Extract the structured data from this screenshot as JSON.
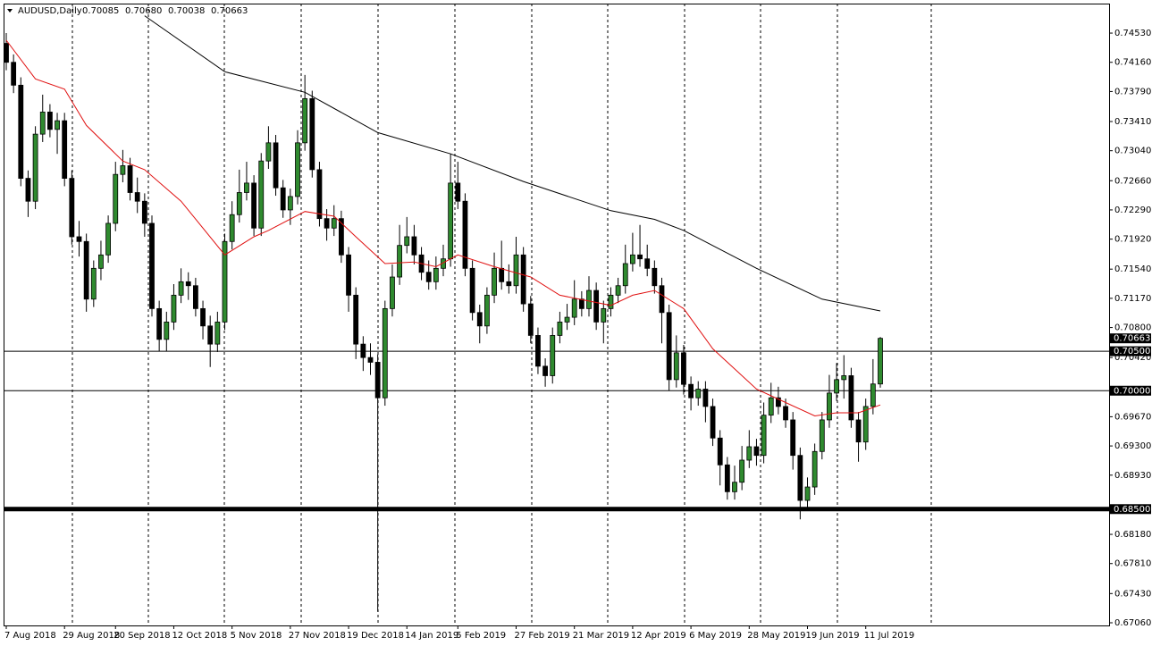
{
  "chart_data": {
    "type": "candlestick",
    "title": "AUDUSD,Daily",
    "last_bar_labels": [
      "0.70085",
      "0.70680",
      "0.70038",
      "0.70663"
    ],
    "up_color": "#2f8a2f",
    "down_color": "#000000",
    "categories": [
      "7 Aug 2018",
      null,
      null,
      null,
      null,
      null,
      null,
      null,
      "29 Aug 2018",
      null,
      null,
      null,
      null,
      null,
      null,
      "20 Sep 2018",
      null,
      null,
      null,
      null,
      null,
      null,
      null,
      "12 Oct 2018",
      null,
      null,
      null,
      null,
      null,
      null,
      null,
      "5 Nov 2018",
      null,
      null,
      null,
      null,
      null,
      null,
      null,
      "27 Nov 2018",
      null,
      null,
      null,
      null,
      null,
      null,
      null,
      "19 Dec 2018",
      null,
      null,
      null,
      null,
      null,
      null,
      null,
      "14 Jan 2019",
      null,
      null,
      null,
      null,
      null,
      null,
      "5 Feb 2019",
      null,
      null,
      null,
      null,
      null,
      null,
      null,
      "27 Feb 2019",
      null,
      null,
      null,
      null,
      null,
      null,
      null,
      "21 Mar 2019",
      null,
      null,
      null,
      null,
      null,
      null,
      null,
      "12 Apr 2019",
      null,
      null,
      null,
      null,
      null,
      null,
      null,
      "6 May 2019",
      null,
      null,
      null,
      null,
      null,
      null,
      null,
      "28 May 2019",
      null,
      null,
      null,
      null,
      null,
      null,
      null,
      "19 Jun 2019",
      null,
      null,
      null,
      null,
      null,
      null,
      null,
      "11 Jul 2019",
      null,
      null
    ],
    "open": [
      0.744,
      0.7416,
      0.7387,
      0.7269,
      0.724,
      0.7325,
      0.7353,
      0.7331,
      0.7342,
      0.7269,
      0.7195,
      0.7189,
      0.7116,
      0.7155,
      0.7172,
      0.7212,
      0.7274,
      0.7285,
      0.7251,
      0.724,
      0.7212,
      0.7104,
      0.7065,
      0.7087,
      0.7121,
      0.7138,
      0.7133,
      0.7104,
      0.7082,
      0.7059,
      0.7087,
      0.7189,
      0.7223,
      0.7251,
      0.7263,
      0.7206,
      0.7291,
      0.7314,
      0.7257,
      0.7229,
      0.7246,
      0.7314,
      0.737,
      0.728,
      0.7218,
      0.7206,
      0.7218,
      0.7172,
      0.7121,
      0.7059,
      0.7042,
      0.7036,
      0.6991,
      0.7104,
      0.7144,
      0.7184,
      0.7195,
      0.7172,
      0.715,
      0.7138,
      0.7155,
      0.7167,
      0.7263,
      0.724,
      0.7155,
      0.7099,
      0.7082,
      0.7121,
      0.7155,
      0.7138,
      0.7133,
      0.7172,
      0.711,
      0.707,
      0.7031,
      0.7019,
      0.707,
      0.7087,
      0.7093,
      0.7116,
      0.7104,
      0.7127,
      0.7087,
      0.7104,
      0.7121,
      0.7133,
      0.7161,
      0.7172,
      0.7167,
      0.7155,
      0.7133,
      0.7099,
      0.7014,
      0.7048,
      0.7008,
      0.6991,
      0.7002,
      0.698,
      0.694,
      0.6906,
      0.6872,
      0.6884,
      0.6912,
      0.6929,
      0.6918,
      0.6969,
      0.6991,
      0.698,
      0.6963,
      0.6918,
      0.6861,
      0.6878,
      0.6923,
      0.6963,
      0.6997,
      0.7014,
      0.7019,
      0.6963,
      0.6935,
      0.698,
      0.70085
    ],
    "high": [
      0.7453,
      0.7426,
      0.7397,
      0.7279,
      0.7335,
      0.7375,
      0.7363,
      0.7352,
      0.7352,
      0.7279,
      0.7215,
      0.7199,
      0.7165,
      0.719,
      0.7222,
      0.729,
      0.7305,
      0.7295,
      0.727,
      0.725,
      0.7222,
      0.7114,
      0.71,
      0.7135,
      0.7155,
      0.715,
      0.7143,
      0.7114,
      0.7095,
      0.71,
      0.7199,
      0.724,
      0.728,
      0.729,
      0.7273,
      0.7301,
      0.7335,
      0.7324,
      0.7267,
      0.7256,
      0.733,
      0.74,
      0.738,
      0.729,
      0.723,
      0.7235,
      0.7228,
      0.7182,
      0.7131,
      0.7069,
      0.706,
      0.7046,
      0.7114,
      0.716,
      0.721,
      0.722,
      0.721,
      0.7182,
      0.7165,
      0.717,
      0.7185,
      0.73,
      0.729,
      0.725,
      0.7165,
      0.7109,
      0.7131,
      0.7175,
      0.719,
      0.716,
      0.7195,
      0.7182,
      0.712,
      0.708,
      0.7041,
      0.708,
      0.71,
      0.711,
      0.714,
      0.7126,
      0.7145,
      0.7137,
      0.7114,
      0.7131,
      0.7143,
      0.7185,
      0.72,
      0.721,
      0.7185,
      0.7165,
      0.7143,
      0.7109,
      0.707,
      0.7058,
      0.7018,
      0.7012,
      0.7012,
      0.699,
      0.695,
      0.6916,
      0.6905,
      0.693,
      0.695,
      0.6939,
      0.6985,
      0.701,
      0.7005,
      0.699,
      0.6973,
      0.6928,
      0.689,
      0.6933,
      0.6973,
      0.702,
      0.7035,
      0.7045,
      0.7029,
      0.6973,
      0.699,
      0.704,
      0.7068
    ],
    "low": [
      0.7406,
      0.7377,
      0.7259,
      0.722,
      0.723,
      0.7315,
      0.7321,
      0.73,
      0.7259,
      0.7185,
      0.717,
      0.71,
      0.7106,
      0.714,
      0.7162,
      0.7202,
      0.7264,
      0.7241,
      0.7225,
      0.7195,
      0.7094,
      0.705,
      0.705,
      0.7077,
      0.7111,
      0.7115,
      0.7094,
      0.7065,
      0.703,
      0.7049,
      0.7077,
      0.7179,
      0.7213,
      0.7241,
      0.7196,
      0.7196,
      0.7281,
      0.7247,
      0.7219,
      0.721,
      0.7236,
      0.7304,
      0.727,
      0.7208,
      0.719,
      0.7196,
      0.7162,
      0.71,
      0.704,
      0.7025,
      0.702,
      0.672,
      0.6981,
      0.7094,
      0.7134,
      0.7174,
      0.716,
      0.714,
      0.7128,
      0.7128,
      0.7145,
      0.7157,
      0.723,
      0.7145,
      0.7089,
      0.706,
      0.7072,
      0.7111,
      0.7128,
      0.7123,
      0.7123,
      0.71,
      0.706,
      0.7021,
      0.7005,
      0.7009,
      0.706,
      0.7077,
      0.7083,
      0.7094,
      0.7094,
      0.7077,
      0.706,
      0.7094,
      0.7111,
      0.7123,
      0.7151,
      0.7157,
      0.7145,
      0.7123,
      0.706,
      0.7,
      0.7004,
      0.6995,
      0.6975,
      0.6981,
      0.696,
      0.693,
      0.688,
      0.6862,
      0.6862,
      0.6874,
      0.6902,
      0.6905,
      0.6908,
      0.6959,
      0.697,
      0.6953,
      0.69,
      0.6837,
      0.6851,
      0.6868,
      0.6913,
      0.6953,
      0.6987,
      0.699,
      0.6953,
      0.691,
      0.6925,
      0.697,
      0.70038
    ],
    "close": [
      0.7416,
      0.7387,
      0.7269,
      0.724,
      0.7325,
      0.7353,
      0.7331,
      0.7342,
      0.7269,
      0.7195,
      0.7189,
      0.7116,
      0.7155,
      0.7172,
      0.7212,
      0.7274,
      0.7285,
      0.7251,
      0.724,
      0.7212,
      0.7104,
      0.7065,
      0.7087,
      0.7121,
      0.7138,
      0.7133,
      0.7104,
      0.7082,
      0.7059,
      0.7087,
      0.7189,
      0.7223,
      0.7251,
      0.7263,
      0.7206,
      0.7291,
      0.7314,
      0.7257,
      0.7229,
      0.7246,
      0.7314,
      0.737,
      0.728,
      0.7218,
      0.7206,
      0.7218,
      0.7172,
      0.7121,
      0.7059,
      0.7042,
      0.7036,
      0.6991,
      0.7104,
      0.7144,
      0.7184,
      0.7195,
      0.7172,
      0.715,
      0.7138,
      0.7155,
      0.7167,
      0.7263,
      0.724,
      0.7155,
      0.7099,
      0.7082,
      0.7121,
      0.7155,
      0.7138,
      0.7133,
      0.7172,
      0.711,
      0.707,
      0.7031,
      0.7019,
      0.707,
      0.7087,
      0.7093,
      0.7116,
      0.7104,
      0.7127,
      0.7087,
      0.7104,
      0.7121,
      0.7133,
      0.7161,
      0.7172,
      0.7167,
      0.7155,
      0.7133,
      0.7099,
      0.7014,
      0.7048,
      0.7008,
      0.6991,
      0.7002,
      0.698,
      0.694,
      0.6906,
      0.6872,
      0.6884,
      0.6912,
      0.6929,
      0.6918,
      0.6969,
      0.6991,
      0.698,
      0.6963,
      0.6918,
      0.6861,
      0.6878,
      0.6923,
      0.6963,
      0.6997,
      0.7014,
      0.7019,
      0.6963,
      0.6935,
      0.698,
      0.70085,
      0.70663
    ],
    "lines": [
      {
        "color": "#000000",
        "x": [
          19,
          30,
          41,
          51,
          61,
          71,
          83,
          89,
          93,
          103,
          112,
          120
        ],
        "values": [
          0.7475,
          0.7404,
          0.7378,
          0.7327,
          0.73,
          0.7265,
          0.7228,
          0.7217,
          0.7203,
          0.7155,
          0.7116,
          0.7101
        ]
      },
      {
        "color": "#e01010",
        "x": [
          0,
          4,
          8,
          11,
          16,
          19,
          24,
          30,
          34,
          36,
          41,
          45,
          48,
          52,
          56,
          59,
          62,
          67,
          72,
          76,
          83,
          86,
          89,
          93,
          97,
          103,
          107,
          111,
          114,
          117,
          120
        ],
        "values": [
          0.7444,
          0.7395,
          0.7382,
          0.7336,
          0.7291,
          0.728,
          0.724,
          0.7172,
          0.7195,
          0.7203,
          0.7227,
          0.7221,
          0.7195,
          0.7161,
          0.7163,
          0.7157,
          0.7172,
          0.7157,
          0.7144,
          0.7121,
          0.7108,
          0.7121,
          0.7127,
          0.7104,
          0.7053,
          0.7002,
          0.6985,
          0.6968,
          0.6972,
          0.6972,
          0.6982
        ]
      }
    ],
    "hlines": [
      {
        "value": 0.705,
        "label": "0.70500",
        "line_width": 1
      },
      {
        "value": 0.7,
        "label": "0.70000",
        "line_width": 1
      },
      {
        "value": 0.685,
        "label": "0.68500",
        "line_width": 5
      }
    ],
    "ylim": [
      0.67026,
      0.74904
    ],
    "yticks": [
      {
        "value": 0.7453,
        "label": "0.74530"
      },
      {
        "value": 0.7416,
        "label": "0.74160"
      },
      {
        "value": 0.7379,
        "label": "0.73790"
      },
      {
        "value": 0.7341,
        "label": "0.73410"
      },
      {
        "value": 0.7304,
        "label": "0.73040"
      },
      {
        "value": 0.7266,
        "label": "0.72660"
      },
      {
        "value": 0.7229,
        "label": "0.72290"
      },
      {
        "value": 0.7192,
        "label": "0.71920"
      },
      {
        "value": 0.7154,
        "label": "0.71540"
      },
      {
        "value": 0.7117,
        "label": "0.71170"
      },
      {
        "value": 0.708,
        "label": "0.70800"
      },
      {
        "value": 0.7042,
        "label": "0.70420"
      },
      {
        "value": 0.6967,
        "label": "0.69670"
      },
      {
        "value": 0.693,
        "label": "0.69300"
      },
      {
        "value": 0.6893,
        "label": "0.68930"
      },
      {
        "value": 0.6818,
        "label": "0.68180"
      },
      {
        "value": 0.6781,
        "label": "0.67810"
      },
      {
        "value": 0.6743,
        "label": "0.67430"
      },
      {
        "value": 0.6706,
        "label": "0.67060"
      }
    ]
  }
}
